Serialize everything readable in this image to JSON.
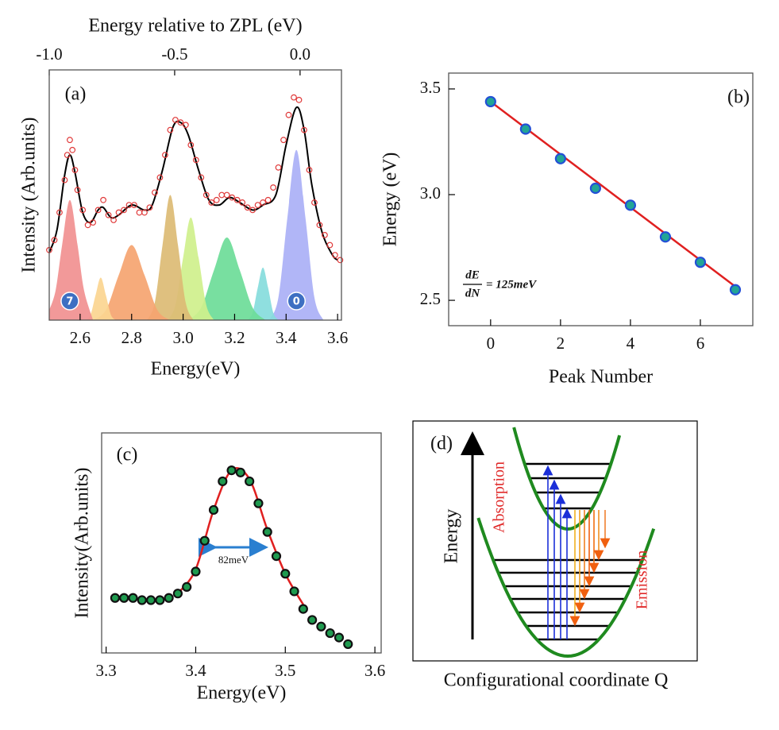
{
  "chart_data": [
    {
      "type": "line",
      "label": "(a)",
      "x_label": "Energy(eV)",
      "y_label": "Intensity (Arb.units)",
      "x2_label": "Energy relative to ZPL (eV)",
      "xlim": [
        2.48,
        3.615
      ],
      "xticks": [
        2.6,
        2.8,
        {
          "value": 3.0,
          "label": "3.0"
        },
        3.2,
        3.4,
        3.6
      ],
      "x2lim": [
        -1.0,
        0.165
      ],
      "x2ticks": [
        {
          "value": -1.0,
          "label": "-1.0"
        },
        -0.5,
        {
          "value": 0.0,
          "label": "0.0"
        }
      ],
      "ylim": [
        0,
        10
      ],
      "components": [
        {
          "color": "#aab0f6",
          "label": "0",
          "x": [
            3.335,
            3.37,
            3.405,
            3.44,
            3.475,
            3.51,
            3.545
          ],
          "values": [
            0,
            0.9,
            4.1,
            6.8,
            4.1,
            0.9,
            0
          ]
        },
        {
          "color": "#86dcdc",
          "x": [
            3.25,
            3.27,
            3.29,
            3.31,
            3.33,
            3.35,
            3.37
          ],
          "values": [
            0,
            0.3,
            1.3,
            2.1,
            1.3,
            0.3,
            0
          ]
        },
        {
          "color": "#6ddc98",
          "x": [
            3.02,
            3.07,
            3.12,
            3.17,
            3.22,
            3.27,
            3.32
          ],
          "values": [
            0,
            0.5,
            2.0,
            3.3,
            2.0,
            0.5,
            0
          ]
        },
        {
          "color": "#cff08c",
          "x": [
            2.94,
            2.97,
            3.0,
            3.03,
            3.06,
            3.09,
            3.12
          ],
          "values": [
            0,
            0.6,
            2.5,
            4.1,
            2.5,
            0.6,
            0
          ]
        },
        {
          "color": "#dcbb74",
          "x": [
            2.86,
            2.89,
            2.92,
            2.95,
            2.98,
            3.01,
            3.04
          ],
          "values": [
            0,
            0.7,
            3.0,
            5.0,
            3.0,
            0.7,
            0
          ]
        },
        {
          "color": "#f5a470",
          "x": [
            2.65,
            2.7,
            2.75,
            2.8,
            2.85,
            2.9,
            2.95
          ],
          "values": [
            0,
            0.4,
            1.8,
            3.0,
            1.8,
            0.4,
            0
          ]
        },
        {
          "color": "#fbd590",
          "x": [
            2.62,
            2.64,
            2.66,
            2.68,
            2.7,
            2.72,
            2.74
          ],
          "values": [
            0,
            0.2,
            1.0,
            1.7,
            1.0,
            0.2,
            0
          ]
        },
        {
          "color": "#f19090",
          "label": "7",
          "x": [
            2.48,
            2.505,
            2.53,
            2.56,
            2.59,
            2.615,
            2.65
          ],
          "values": [
            0.4,
            1.2,
            3.0,
            4.8,
            3.0,
            1.2,
            0
          ]
        }
      ],
      "data": {
        "color": "#e03a3a",
        "x": [
          2.48,
          2.5,
          2.52,
          2.54,
          2.55,
          2.56,
          2.57,
          2.58,
          2.59,
          2.61,
          2.63,
          2.65,
          2.67,
          2.69,
          2.71,
          2.73,
          2.75,
          2.77,
          2.79,
          2.81,
          2.83,
          2.85,
          2.87,
          2.89,
          2.91,
          2.93,
          2.95,
          2.97,
          2.99,
          3.01,
          3.03,
          3.05,
          3.07,
          3.09,
          3.11,
          3.13,
          3.15,
          3.17,
          3.19,
          3.21,
          3.23,
          3.25,
          3.27,
          3.29,
          3.31,
          3.33,
          3.35,
          3.37,
          3.39,
          3.41,
          3.43,
          3.45,
          3.47,
          3.49,
          3.51,
          3.53,
          3.55,
          3.57,
          3.59,
          3.61
        ],
        "values": [
          2.8,
          3.2,
          4.3,
          5.6,
          6.6,
          7.2,
          6.8,
          6.0,
          5.2,
          4.4,
          3.8,
          3.9,
          4.4,
          4.8,
          4.2,
          4.0,
          4.3,
          4.4,
          4.6,
          4.6,
          4.3,
          4.3,
          4.5,
          5.1,
          5.7,
          6.6,
          7.6,
          8.0,
          7.9,
          7.8,
          7.0,
          6.4,
          5.7,
          5.0,
          4.7,
          4.8,
          5.0,
          5.0,
          4.9,
          4.8,
          4.7,
          4.5,
          4.4,
          4.6,
          4.7,
          4.8,
          5.3,
          6.1,
          7.2,
          8.2,
          8.9,
          8.8,
          7.6,
          6.0,
          4.7,
          3.8,
          3.4,
          3.0,
          2.6,
          2.4
        ]
      },
      "fit": {
        "color": "#000000",
        "x": [
          2.48,
          2.51,
          2.54,
          2.56,
          2.58,
          2.61,
          2.64,
          2.67,
          2.69,
          2.72,
          2.75,
          2.8,
          2.85,
          2.88,
          2.92,
          2.96,
          2.99,
          3.02,
          3.06,
          3.1,
          3.14,
          3.18,
          3.22,
          3.27,
          3.31,
          3.36,
          3.4,
          3.44,
          3.47,
          3.5,
          3.54,
          3.58,
          3.6
        ],
        "values": [
          2.7,
          3.6,
          5.8,
          6.6,
          5.9,
          4.3,
          3.9,
          4.4,
          4.5,
          4.1,
          4.2,
          4.6,
          4.4,
          4.6,
          6.0,
          7.7,
          7.9,
          7.4,
          6.0,
          4.8,
          4.6,
          4.9,
          4.7,
          4.4,
          4.6,
          5.0,
          7.0,
          8.5,
          7.6,
          5.4,
          3.5,
          2.6,
          2.4
        ]
      }
    },
    {
      "type": "scatter",
      "label": "(b)",
      "x_label": "Peak Number",
      "y_label": "Energy (eV)",
      "xlim": [
        -1.2,
        7.5
      ],
      "xticks": [
        0,
        2,
        4,
        6
      ],
      "ylim": [
        2.38,
        3.575
      ],
      "yticks": [
        2.5,
        {
          "value": 3.0,
          "label": "3.0"
        },
        3.5
      ],
      "x": [
        0,
        1,
        2,
        3,
        4,
        5,
        6,
        7
      ],
      "values": [
        3.44,
        3.31,
        3.17,
        3.03,
        2.95,
        2.8,
        2.68,
        2.55
      ],
      "color": "#22a596",
      "edge_color": "#2350d6",
      "marker_size": 6,
      "fit": {
        "color": "#e02020",
        "x": [
          0,
          7
        ],
        "values": [
          3.44,
          2.565
        ]
      },
      "annotation": {
        "numerator": "dE",
        "denominator": "dN",
        "text": "= 125meV"
      }
    },
    {
      "type": "scatter",
      "label": "(c)",
      "x_label": "Energy(eV)",
      "y_label": "Intensity(Arb.units)",
      "xlim": [
        3.295,
        3.607
      ],
      "xticks": [
        3.3,
        3.4,
        3.5,
        3.6
      ],
      "ylim": [
        0,
        10
      ],
      "x": [
        3.31,
        3.32,
        3.33,
        3.34,
        3.35,
        3.36,
        3.37,
        3.38,
        3.39,
        3.4,
        3.41,
        3.42,
        3.43,
        3.44,
        3.45,
        3.46,
        3.47,
        3.48,
        3.49,
        3.5,
        3.51,
        3.52,
        3.53,
        3.54,
        3.55,
        3.56,
        3.57
      ],
      "values": [
        2.5,
        2.5,
        2.5,
        2.4,
        2.4,
        2.4,
        2.5,
        2.7,
        3.0,
        3.7,
        5.1,
        6.5,
        7.8,
        8.3,
        8.2,
        7.8,
        6.8,
        5.5,
        4.4,
        3.6,
        2.8,
        2.0,
        1.5,
        1.2,
        0.9,
        0.7,
        0.4
      ],
      "color": "#1f9a4f",
      "edge_color": "#111111",
      "marker_size": 5,
      "fit": {
        "color": "#e02020",
        "x": [
          3.38,
          3.4,
          3.42,
          3.44,
          3.46,
          3.48,
          3.5,
          3.52
        ],
        "values": [
          2.7,
          3.8,
          6.5,
          8.3,
          7.9,
          5.6,
          3.6,
          2.2
        ]
      },
      "annotation": {
        "text": "82meV"
      }
    }
  ],
  "diagram": {
    "label": "(d)",
    "y_label": "Energy",
    "absorption": "Absorption",
    "emission": "Emission",
    "x_label": "Configurational coordinate Q"
  }
}
